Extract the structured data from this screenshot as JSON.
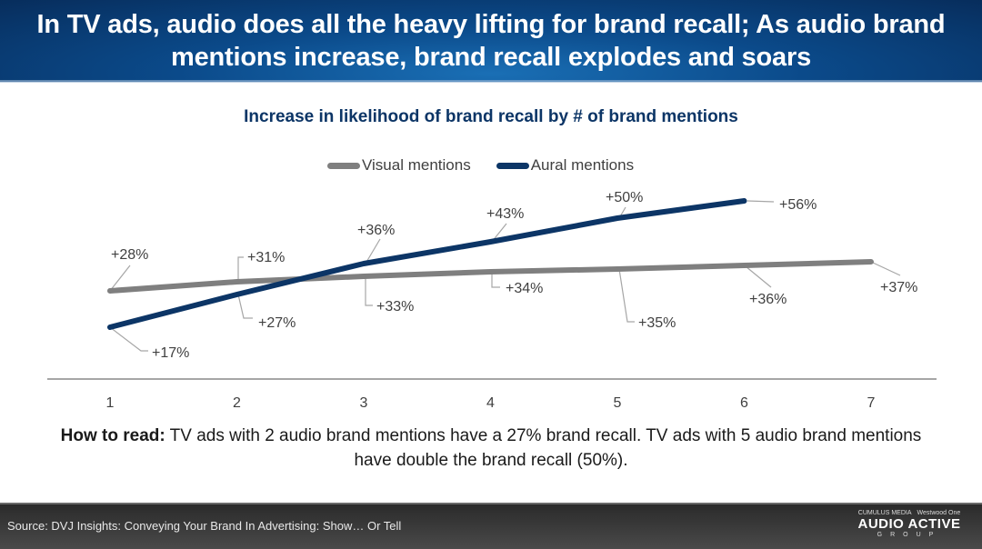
{
  "header": {
    "title": "In TV ads, audio does all the heavy lifting for brand recall; As audio brand mentions increase, brand recall explodes and soars"
  },
  "chart": {
    "title": "Increase in likelihood of brand recall by # of brand mentions",
    "legend": [
      {
        "label": "Visual mentions",
        "color": "#7f7f7f"
      },
      {
        "label": "Aural mentions",
        "color": "#0c3566"
      }
    ]
  },
  "chart_data": {
    "type": "line",
    "title": "Increase in likelihood of brand recall by # of brand mentions",
    "xlabel": "",
    "ylabel": "",
    "x": [
      1,
      2,
      3,
      4,
      5,
      6,
      7
    ],
    "series": [
      {
        "name": "Visual mentions",
        "color": "#7f7f7f",
        "values": [
          28,
          31,
          33,
          34,
          35,
          36,
          37
        ],
        "labels": [
          "+28%",
          "+31%",
          "+33%",
          "+34%",
          "+35%",
          "+36%",
          "+37%"
        ]
      },
      {
        "name": "Aural mentions",
        "color": "#0c3566",
        "values": [
          17,
          27,
          36,
          43,
          50,
          56,
          null
        ],
        "labels": [
          "+17%",
          "+27%",
          "+36%",
          "+43%",
          "+50%",
          "+56%"
        ]
      }
    ],
    "legend_position": "top",
    "grid": false,
    "y_axis_visible": false
  },
  "howto": {
    "label": "How to read:",
    "text": " TV ads with 2 audio brand mentions have a 27% brand recall. TV ads with 5 audio brand mentions have double the brand recall (50%)."
  },
  "footer": {
    "source": "Source: DVJ Insights: Conveying Your Brand In Advertising: Show… Or Tell",
    "logo": {
      "top_left": "CUMULUS MEDIA",
      "top_right": "Westwood One",
      "main": "AUDIO ACTIVE",
      "sub": "GROUP"
    }
  }
}
